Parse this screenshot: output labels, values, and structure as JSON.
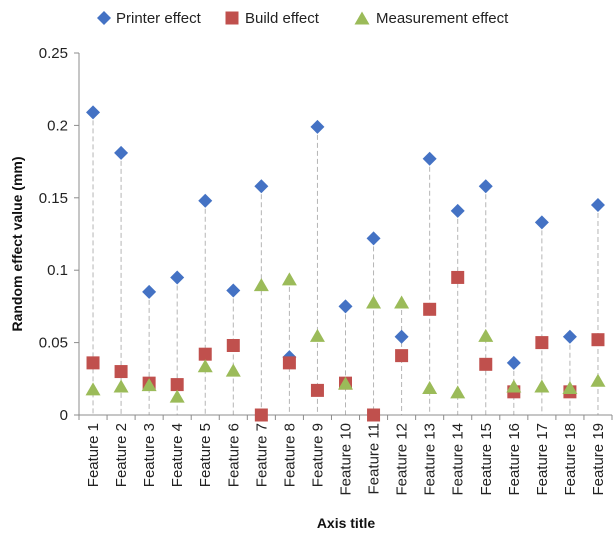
{
  "chart_data": {
    "type": "scatter",
    "title": "",
    "xlabel": "Axis title",
    "ylabel": "Random effect value (mm)",
    "ylim": [
      0,
      0.25
    ],
    "yticks": [
      "0",
      "0.05",
      "0.1",
      "0.15",
      "0.2",
      "0.25"
    ],
    "grid": false,
    "legend_position": "top",
    "drop_lines": true,
    "categories": [
      "Feature 1",
      "Feature 2",
      "Feature 3",
      "Feature 4",
      "Feature 5",
      "Feature 6",
      "Feature 7",
      "Feature 8",
      "Feature 9",
      "Feature 10",
      "Feature 11",
      "Feature 12",
      "Feature 13",
      "Feature 14",
      "Feature 15",
      "Feature 16",
      "Feature 17",
      "Feature 18",
      "Feature 19"
    ],
    "series": [
      {
        "name": "Printer effect",
        "marker": "diamond",
        "color": "#4472C4",
        "values": [
          0.209,
          0.181,
          0.085,
          0.095,
          0.148,
          0.086,
          0.158,
          0.04,
          0.199,
          0.075,
          0.122,
          0.054,
          0.177,
          0.141,
          0.158,
          0.036,
          0.133,
          0.054,
          0.145
        ]
      },
      {
        "name": "Build effect",
        "marker": "square",
        "color": "#C0504D",
        "values": [
          0.036,
          0.03,
          0.022,
          0.021,
          0.042,
          0.048,
          0.0,
          0.036,
          0.017,
          0.022,
          0.0,
          0.041,
          0.073,
          0.095,
          0.035,
          0.016,
          0.05,
          0.016,
          0.052
        ]
      },
      {
        "name": "Measurement effect",
        "marker": "triangle",
        "color": "#9BBB59",
        "values": [
          0.018,
          0.02,
          0.021,
          0.013,
          0.034,
          0.031,
          0.09,
          0.094,
          0.055,
          0.022,
          0.078,
          0.078,
          0.019,
          0.016,
          0.055,
          0.02,
          0.02,
          0.019,
          0.024
        ]
      }
    ]
  }
}
